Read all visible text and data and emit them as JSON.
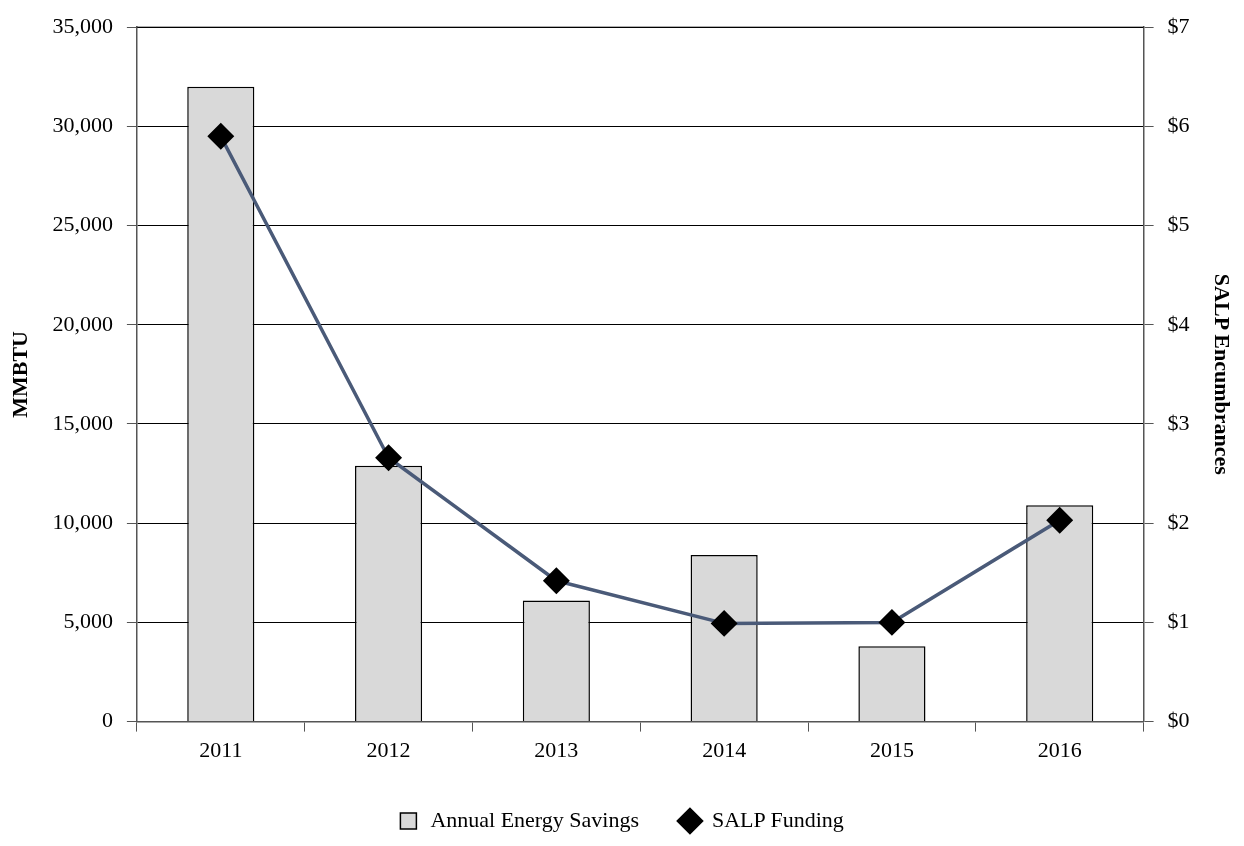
{
  "chart_data": {
    "type": "bar",
    "categories": [
      "2011",
      "2012",
      "2013",
      "2014",
      "2015",
      "2016"
    ],
    "series": [
      {
        "name": "Annual Energy Savings",
        "color": "#d9d9d9",
        "values": [
          32000,
          12900,
          6100,
          8400,
          3800,
          10900
        ]
      },
      {
        "name": "SALP Funding",
        "type": "line",
        "axis": "y2",
        "color": "#4a5a78",
        "values": [
          5.9,
          2.66,
          1.42,
          0.99,
          1.0,
          2.03
        ]
      }
    ],
    "ylabel": "MMBTU",
    "y2label": "SALP Encumbrances",
    "ylim": [
      0,
      35000
    ],
    "yticks": [
      0,
      {
        "value": 5000,
        "label": "5,000"
      },
      {
        "value": 10000,
        "label": "10,000"
      },
      {
        "value": 15000,
        "label": "15,000"
      },
      {
        "value": 20000,
        "label": "20,000"
      },
      {
        "value": 25000,
        "label": "25,000"
      },
      {
        "value": 30000,
        "label": "30,000"
      },
      {
        "value": 35000,
        "label": "35,000"
      }
    ],
    "y2lim": [
      0,
      7
    ],
    "y2ticks": [
      {
        "value": 0,
        "label": "$0"
      },
      {
        "value": 1,
        "label": "$1"
      },
      {
        "value": 2,
        "label": "$2"
      },
      {
        "value": 3,
        "label": "$3"
      },
      {
        "value": 4,
        "label": "$4"
      },
      {
        "value": 5,
        "label": "$5"
      },
      {
        "value": 6,
        "label": "$6"
      },
      {
        "value": 7,
        "label": "$7"
      }
    ],
    "grid": "y",
    "legend": "bottom",
    "marker": "diamond",
    "line_style": "solid"
  }
}
